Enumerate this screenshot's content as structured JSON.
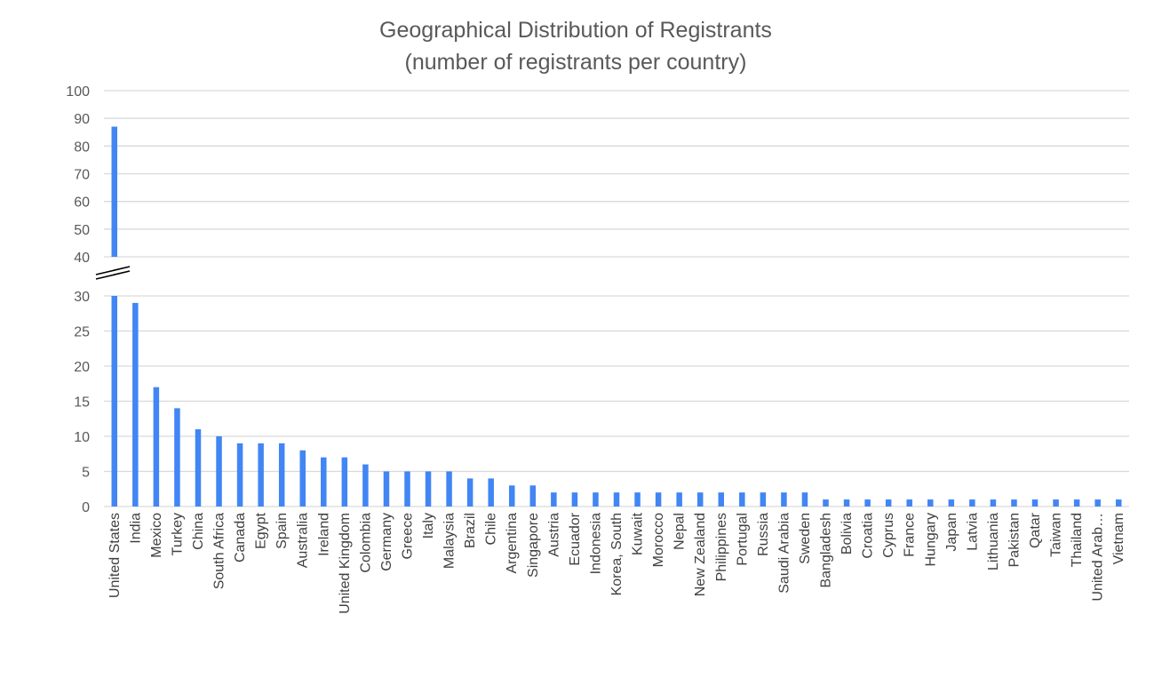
{
  "chart_data": {
    "type": "bar",
    "title": "Geographical Distribution of Registrants",
    "subtitle": "(number of registrants per country)",
    "xlabel": "",
    "ylabel": "",
    "grid": true,
    "axis_break": true,
    "upper_panel": {
      "ylim": [
        40,
        100
      ],
      "ticks": [
        "40",
        "50",
        "60",
        "70",
        "80",
        "90",
        "100"
      ]
    },
    "lower_panel": {
      "ylim": [
        0,
        30
      ],
      "ticks": [
        "0",
        "5",
        "10",
        "15",
        "20",
        "25",
        "30"
      ]
    },
    "categories": [
      "United States",
      "India",
      "Mexico",
      "Turkey",
      "China",
      "South Africa",
      "Canada",
      "Egypt",
      "Spain",
      "Australia",
      "Ireland",
      "United Kingdom",
      "Colombia",
      "Germany",
      "Greece",
      "Italy",
      "Malaysia",
      "Brazil",
      "Chile",
      "Argentina",
      "Singapore",
      "Austria",
      "Ecuador",
      "Indonesia",
      "Korea, South",
      "Kuwait",
      "Morocco",
      "Nepal",
      "New Zealand",
      "Philippines",
      "Portugal",
      "Russia",
      "Saudi Arabia",
      "Sweden",
      "Bangladesh",
      "Bolivia",
      "Croatia",
      "Cyprus",
      "France",
      "Hungary",
      "Japan",
      "Latvia",
      "Lithuania",
      "Pakistan",
      "Qatar",
      "Taiwan",
      "Thailand",
      "United Arab…",
      "Vietnam"
    ],
    "values": [
      87,
      29,
      17,
      14,
      11,
      10,
      9,
      9,
      9,
      8,
      7,
      7,
      6,
      5,
      5,
      5,
      5,
      4,
      4,
      3,
      3,
      2,
      2,
      2,
      2,
      2,
      2,
      2,
      2,
      2,
      2,
      2,
      2,
      2,
      1,
      1,
      1,
      1,
      1,
      1,
      1,
      1,
      1,
      1,
      1,
      1,
      1,
      1,
      1
    ],
    "colors": {
      "bar": "#4285f4",
      "grid": "#d9d9d9",
      "text": "#595959"
    }
  }
}
